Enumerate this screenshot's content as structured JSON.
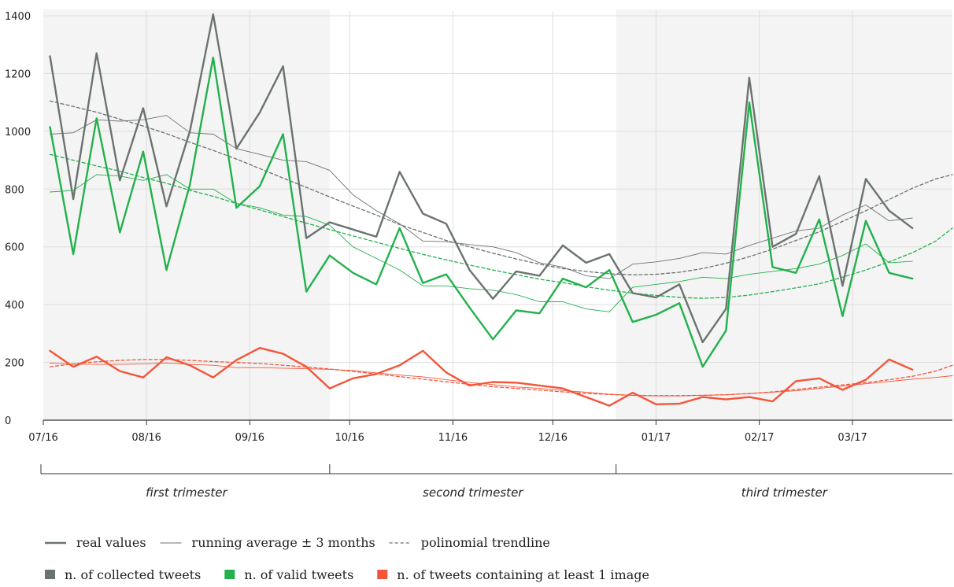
{
  "chart_data": {
    "type": "line",
    "title": "",
    "xlabel": "",
    "ylabel": "",
    "ylim": [
      0,
      1400
    ],
    "yticks": [
      0,
      200,
      400,
      600,
      800,
      1000,
      1200,
      1400
    ],
    "xticks": [
      "07/16",
      "08/16",
      "09/16",
      "10/16",
      "11/16",
      "12/16",
      "01/17",
      "02/17",
      "03/17"
    ],
    "xlim": [
      "2016-07-01",
      "2017-03-31"
    ],
    "grid": true,
    "x": [
      "2016-07-03",
      "2016-07-10",
      "2016-07-17",
      "2016-07-24",
      "2016-07-31",
      "2016-08-07",
      "2016-08-14",
      "2016-08-21",
      "2016-08-28",
      "2016-09-04",
      "2016-09-11",
      "2016-09-18",
      "2016-09-25",
      "2016-10-02",
      "2016-10-09",
      "2016-10-16",
      "2016-10-23",
      "2016-10-30",
      "2016-11-06",
      "2016-11-13",
      "2016-11-20",
      "2016-11-27",
      "2016-12-04",
      "2016-12-11",
      "2016-12-18",
      "2016-12-25",
      "2017-01-01",
      "2017-01-08",
      "2017-01-15",
      "2017-01-22",
      "2017-01-29",
      "2017-02-05",
      "2017-02-12",
      "2017-02-19",
      "2017-02-26",
      "2017-03-05",
      "2017-03-12",
      "2017-03-19",
      "2017-03-26",
      "2017-03-31"
    ],
    "series": [
      {
        "name": "n. of collected tweets",
        "kind": "real values",
        "color": "#6b7370",
        "values": [
          1260,
          765,
          1270,
          830,
          1080,
          740,
          1000,
          1405,
          940,
          1065,
          1225,
          630,
          685,
          660,
          635,
          860,
          715,
          680,
          520,
          420,
          515,
          500,
          605,
          545,
          575,
          440,
          425,
          470,
          270,
          385,
          1185,
          600,
          645,
          845,
          465,
          835,
          725,
          665,
          null,
          null
        ]
      },
      {
        "name": "n. of valid tweets",
        "kind": "real values",
        "color": "#22b14c",
        "values": [
          1015,
          575,
          1045,
          650,
          930,
          520,
          815,
          1255,
          735,
          810,
          990,
          445,
          570,
          510,
          470,
          665,
          475,
          505,
          390,
          280,
          380,
          370,
          490,
          460,
          520,
          340,
          365,
          405,
          185,
          310,
          1100,
          530,
          510,
          695,
          360,
          690,
          510,
          490,
          null,
          null
        ]
      },
      {
        "name": "n. of tweets containing at least 1 image",
        "kind": "real values",
        "color": "#f4553a",
        "values": [
          240,
          185,
          220,
          170,
          148,
          218,
          190,
          148,
          208,
          250,
          230,
          185,
          110,
          145,
          160,
          190,
          240,
          165,
          120,
          132,
          130,
          120,
          110,
          80,
          50,
          95,
          55,
          57,
          80,
          72,
          80,
          65,
          135,
          145,
          105,
          140,
          210,
          175,
          null,
          null
        ]
      },
      {
        "name": "n. of collected tweets",
        "kind": "running average ± 3 months",
        "color": "#6b7370",
        "values": [
          990,
          995,
          1040,
          1035,
          1040,
          1055,
          995,
          990,
          940,
          920,
          900,
          895,
          865,
          780,
          725,
          680,
          620,
          618,
          608,
          600,
          580,
          545,
          530,
          500,
          490,
          540,
          548,
          560,
          580,
          575,
          605,
          630,
          655,
          665,
          710,
          745,
          690,
          700,
          null,
          null
        ]
      },
      {
        "name": "n. of valid tweets",
        "kind": "running average ± 3 months",
        "color": "#22b14c",
        "values": [
          790,
          795,
          850,
          845,
          830,
          850,
          800,
          800,
          750,
          735,
          710,
          705,
          675,
          600,
          560,
          520,
          465,
          465,
          455,
          450,
          435,
          410,
          410,
          385,
          375,
          460,
          470,
          480,
          495,
          490,
          505,
          515,
          525,
          540,
          570,
          610,
          545,
          550,
          null,
          null
        ]
      },
      {
        "name": "n. of tweets containing at least 1 image",
        "kind": "running average ± 3 months",
        "color": "#f4553a",
        "values": [
          198,
          194,
          193,
          193,
          195,
          198,
          193,
          190,
          182,
          182,
          180,
          178,
          176,
          172,
          164,
          156,
          150,
          140,
          131,
          123,
          115,
          110,
          103,
          97,
          90,
          86,
          84,
          84,
          86,
          88,
          92,
          97,
          102,
          110,
          118,
          126,
          134,
          142,
          148,
          154
        ]
      },
      {
        "name": "n. of collected tweets",
        "kind": "polinomial trendline",
        "color": "#6b7370",
        "values": [
          1105,
          1086,
          1066,
          1042,
          1018,
          992,
          962,
          934,
          904,
          871,
          838,
          806,
          773,
          741,
          710,
          677,
          650,
          622,
          600,
          578,
          558,
          540,
          525,
          515,
          507,
          503,
          505,
          512,
          525,
          543,
          566,
          592,
          622,
          652,
          688,
          725,
          764,
          803,
          835,
          850
        ]
      },
      {
        "name": "n. of valid tweets",
        "kind": "polinomial trendline",
        "color": "#22b14c",
        "values": [
          920,
          900,
          880,
          862,
          840,
          820,
          796,
          775,
          750,
          728,
          705,
          682,
          660,
          638,
          616,
          595,
          574,
          555,
          537,
          520,
          504,
          488,
          476,
          462,
          450,
          440,
          432,
          425,
          422,
          425,
          433,
          445,
          458,
          472,
          495,
          520,
          548,
          580,
          620,
          665
        ]
      },
      {
        "name": "n. of tweets containing at least 1 image",
        "kind": "polinomial trendline",
        "color": "#f4553a",
        "values": [
          185,
          195,
          202,
          207,
          210,
          210,
          207,
          203,
          200,
          196,
          190,
          184,
          177,
          169,
          160,
          151,
          142,
          133,
          124,
          116,
          110,
          104,
          98,
          93,
          89,
          86,
          85,
          85,
          86,
          88,
          92,
          98,
          106,
          114,
          122,
          130,
          140,
          152,
          170,
          190
        ]
      }
    ],
    "trimesters": [
      {
        "label": "first trimester",
        "from": "2016-07-01",
        "to": "2016-09-25",
        "shaded": true
      },
      {
        "label": "second trimester",
        "from": "2016-09-25",
        "to": "2016-12-20",
        "shaded": false
      },
      {
        "label": "third trimester",
        "from": "2016-12-20",
        "to": "2017-03-31",
        "shaded": true
      }
    ],
    "legend": {
      "placement": "bottom-left",
      "styles": [
        {
          "label": "real values",
          "kind": "real values"
        },
        {
          "label": "running average ± 3 months",
          "kind": "running average ± 3 months"
        },
        {
          "label": "polinomial trendline",
          "kind": "polinomial trendline"
        }
      ],
      "colors": [
        {
          "label": "n. of collected tweets",
          "color": "#6b7370"
        },
        {
          "label": "n. of valid tweets",
          "color": "#22b14c"
        },
        {
          "label": "n. of tweets containing at least 1 image",
          "color": "#f4553a"
        }
      ]
    },
    "colors": {
      "shade": "#f4f4f4",
      "grid": "#dedede",
      "axis": "#333333"
    }
  }
}
